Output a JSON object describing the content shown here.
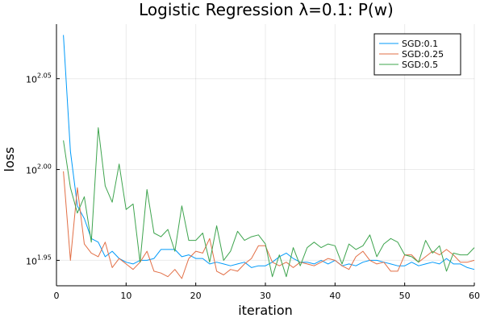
{
  "chart_data": {
    "type": "line",
    "title": "Logistic Regression λ=0.1: P(w)",
    "xlabel": "iteration",
    "ylabel": "loss",
    "yscale": "log10",
    "xlim": [
      0,
      60
    ],
    "ylim": [
      1.936,
      2.08
    ],
    "xticks": [
      0,
      10,
      20,
      30,
      40,
      50,
      60
    ],
    "yticks": [
      {
        "value": 1.95,
        "base": "10",
        "exp": "1.95"
      },
      {
        "value": 2.0,
        "base": "10",
        "exp": "2.00"
      },
      {
        "value": 2.05,
        "base": "10",
        "exp": "2.05"
      }
    ],
    "grid": true,
    "legend": "top-right",
    "series": [
      {
        "name": "SGD:0.1",
        "color": "#009AFA",
        "x": [
          1,
          2,
          3,
          4,
          5,
          6,
          7,
          8,
          9,
          10,
          11,
          12,
          13,
          14,
          15,
          16,
          17,
          18,
          19,
          20,
          21,
          22,
          23,
          24,
          25,
          26,
          27,
          28,
          29,
          30,
          31,
          32,
          33,
          34,
          35,
          36,
          37,
          38,
          39,
          40,
          41,
          42,
          43,
          44,
          45,
          46,
          47,
          48,
          49,
          50,
          51,
          52,
          53,
          54,
          55,
          56,
          57,
          58,
          59,
          60
        ],
        "values": [
          2.074,
          2.01,
          1.98,
          1.973,
          1.962,
          1.96,
          1.952,
          1.955,
          1.951,
          1.949,
          1.948,
          1.95,
          1.95,
          1.951,
          1.956,
          1.956,
          1.956,
          1.952,
          1.953,
          1.951,
          1.951,
          1.948,
          1.949,
          1.948,
          1.947,
          1.948,
          1.949,
          1.946,
          1.947,
          1.947,
          1.949,
          1.952,
          1.954,
          1.951,
          1.949,
          1.949,
          1.948,
          1.95,
          1.948,
          1.95,
          1.947,
          1.948,
          1.947,
          1.949,
          1.95,
          1.95,
          1.949,
          1.948,
          1.947,
          1.947,
          1.949,
          1.947,
          1.948,
          1.949,
          1.948,
          1.951,
          1.948,
          1.948,
          1.946,
          1.945
        ]
      },
      {
        "name": "SGD:0.25",
        "color": "#E26F46",
        "x": [
          1,
          2,
          3,
          4,
          5,
          6,
          7,
          8,
          9,
          10,
          11,
          12,
          13,
          14,
          15,
          16,
          17,
          18,
          19,
          20,
          21,
          22,
          23,
          24,
          25,
          26,
          27,
          28,
          29,
          30,
          31,
          32,
          33,
          34,
          35,
          36,
          37,
          38,
          39,
          40,
          41,
          42,
          43,
          44,
          45,
          46,
          47,
          48,
          49,
          50,
          51,
          52,
          53,
          54,
          55,
          56,
          57,
          58,
          59,
          60
        ],
        "values": [
          1.999,
          1.95,
          1.99,
          1.959,
          1.954,
          1.952,
          1.96,
          1.946,
          1.951,
          1.948,
          1.945,
          1.949,
          1.955,
          1.944,
          1.943,
          1.941,
          1.945,
          1.94,
          1.951,
          1.955,
          1.954,
          1.962,
          1.944,
          1.942,
          1.945,
          1.944,
          1.948,
          1.951,
          1.958,
          1.958,
          1.949,
          1.947,
          1.949,
          1.946,
          1.949,
          1.948,
          1.947,
          1.949,
          1.951,
          1.95,
          1.947,
          1.945,
          1.952,
          1.955,
          1.95,
          1.948,
          1.949,
          1.944,
          1.944,
          1.953,
          1.953,
          1.949,
          1.952,
          1.955,
          1.953,
          1.956,
          1.953,
          1.949,
          1.949,
          1.95
        ]
      },
      {
        "name": "SGD:0.5",
        "color": "#3EA44E",
        "x": [
          1,
          2,
          3,
          4,
          5,
          6,
          7,
          8,
          9,
          10,
          11,
          12,
          13,
          14,
          15,
          16,
          17,
          18,
          19,
          20,
          21,
          22,
          23,
          24,
          25,
          26,
          27,
          28,
          29,
          30,
          31,
          32,
          33,
          34,
          35,
          36,
          37,
          38,
          39,
          40,
          41,
          42,
          43,
          44,
          45,
          46,
          47,
          48,
          49,
          50,
          51,
          52,
          53,
          54,
          55,
          56,
          57,
          58,
          59,
          60
        ],
        "values": [
          2.016,
          1.99,
          1.976,
          1.985,
          1.96,
          2.023,
          1.991,
          1.982,
          2.003,
          1.978,
          1.981,
          1.949,
          1.989,
          1.965,
          1.963,
          1.967,
          1.955,
          1.98,
          1.961,
          1.961,
          1.965,
          1.949,
          1.969,
          1.95,
          1.955,
          1.966,
          1.961,
          1.963,
          1.964,
          1.959,
          1.941,
          1.953,
          1.941,
          1.957,
          1.947,
          1.957,
          1.96,
          1.957,
          1.959,
          1.958,
          1.948,
          1.959,
          1.956,
          1.958,
          1.964,
          1.952,
          1.959,
          1.962,
          1.96,
          1.953,
          1.952,
          1.949,
          1.961,
          1.954,
          1.958,
          1.944,
          1.954,
          1.953,
          1.953,
          1.957
        ]
      }
    ]
  }
}
